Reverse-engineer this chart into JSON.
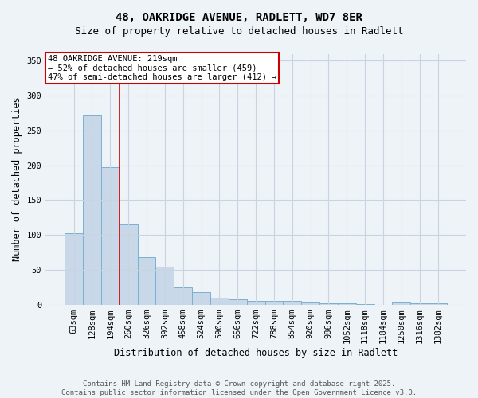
{
  "title_line1": "48, OAKRIDGE AVENUE, RADLETT, WD7 8ER",
  "title_line2": "Size of property relative to detached houses in Radlett",
  "xlabel": "Distribution of detached houses by size in Radlett",
  "ylabel": "Number of detached properties",
  "categories": [
    "63sqm",
    "128sqm",
    "194sqm",
    "260sqm",
    "326sqm",
    "392sqm",
    "458sqm",
    "524sqm",
    "590sqm",
    "656sqm",
    "722sqm",
    "788sqm",
    "854sqm",
    "920sqm",
    "986sqm",
    "1052sqm",
    "1118sqm",
    "1184sqm",
    "1250sqm",
    "1316sqm",
    "1382sqm"
  ],
  "values": [
    103,
    271,
    197,
    115,
    68,
    55,
    25,
    18,
    10,
    8,
    5,
    5,
    5,
    3,
    2,
    2,
    1,
    0,
    3,
    2,
    2
  ],
  "bar_color": "#c8d8e8",
  "bar_edge_color": "#7ab0d0",
  "red_line_index": 2,
  "red_line_color": "#cc0000",
  "annotation_text": "48 OAKRIDGE AVENUE: 219sqm\n← 52% of detached houses are smaller (459)\n47% of semi-detached houses are larger (412) →",
  "annotation_box_color": "#ffffff",
  "annotation_box_edge_color": "#cc0000",
  "ylim": [
    0,
    360
  ],
  "yticks": [
    0,
    50,
    100,
    150,
    200,
    250,
    300,
    350
  ],
  "grid_color": "#c8d4e0",
  "background_color": "#eef3f8",
  "footer_line1": "Contains HM Land Registry data © Crown copyright and database right 2025.",
  "footer_line2": "Contains public sector information licensed under the Open Government Licence v3.0.",
  "title_fontsize": 10,
  "subtitle_fontsize": 9,
  "axis_label_fontsize": 8.5,
  "tick_fontsize": 7.5,
  "annotation_fontsize": 7.5,
  "footer_fontsize": 6.5
}
